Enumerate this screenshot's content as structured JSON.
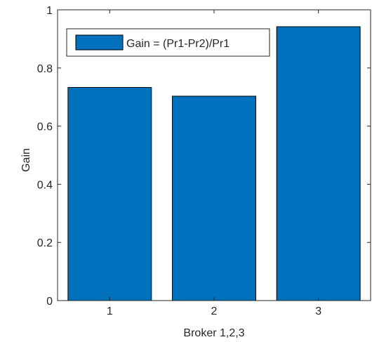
{
  "chart_data": {
    "type": "bar",
    "categories": [
      "1",
      "2",
      "3"
    ],
    "series": [
      {
        "name": "Gain = (Pr1-Pr2)/Pr1",
        "values": [
          0.733,
          0.703,
          0.942
        ]
      }
    ],
    "xlabel": "Broker 1,2,3",
    "ylabel": "Gain",
    "ylim": [
      0,
      1
    ],
    "yticks": [
      "0",
      "0.2",
      "0.4",
      "0.6",
      "0.8",
      "1"
    ],
    "grid": false,
    "legend_position": "top-left",
    "bar_color": "#0072BD",
    "edge_color": "#000000"
  }
}
